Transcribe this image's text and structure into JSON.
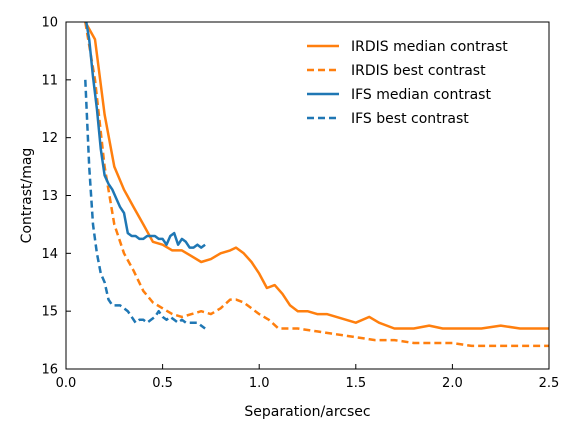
{
  "chart_data": {
    "type": "line",
    "xlabel": "Separation/arcsec",
    "ylabel": "Contrast/mag",
    "xlim": [
      0,
      2.5
    ],
    "ylim": [
      10,
      16
    ],
    "y_inverted": true,
    "x_ticks": [
      "0.0",
      "0.5",
      "1.0",
      "1.5",
      "2.0",
      "2.5"
    ],
    "y_ticks": [
      "10",
      "11",
      "12",
      "13",
      "14",
      "15",
      "16"
    ],
    "legend_position": "top-right",
    "grid": false,
    "series": [
      {
        "name": "IRDIS median contrast",
        "color": "#ff7f0e",
        "style": "solid",
        "x": [
          0.1,
          0.15,
          0.2,
          0.25,
          0.3,
          0.35,
          0.4,
          0.45,
          0.5,
          0.55,
          0.6,
          0.65,
          0.7,
          0.75,
          0.8,
          0.85,
          0.88,
          0.92,
          0.96,
          1.0,
          1.04,
          1.08,
          1.12,
          1.16,
          1.2,
          1.25,
          1.3,
          1.35,
          1.4,
          1.5,
          1.57,
          1.62,
          1.7,
          1.8,
          1.88,
          1.95,
          2.0,
          2.05,
          2.15,
          2.25,
          2.35,
          2.45,
          2.5
        ],
        "y": [
          10.0,
          10.3,
          11.6,
          12.5,
          12.9,
          13.2,
          13.5,
          13.8,
          13.85,
          13.95,
          13.95,
          14.05,
          14.15,
          14.1,
          14.0,
          13.95,
          13.9,
          14.0,
          14.15,
          14.35,
          14.6,
          14.55,
          14.7,
          14.9,
          15.0,
          15.0,
          15.05,
          15.05,
          15.1,
          15.2,
          15.1,
          15.2,
          15.3,
          15.3,
          15.25,
          15.3,
          15.3,
          15.3,
          15.3,
          15.25,
          15.3,
          15.3,
          15.3
        ]
      },
      {
        "name": "IRDIS best contrast",
        "color": "#ff7f0e",
        "style": "dashed",
        "x": [
          0.1,
          0.15,
          0.2,
          0.25,
          0.3,
          0.35,
          0.4,
          0.45,
          0.5,
          0.55,
          0.6,
          0.65,
          0.7,
          0.75,
          0.8,
          0.85,
          0.88,
          0.92,
          0.96,
          1.0,
          1.05,
          1.1,
          1.2,
          1.3,
          1.4,
          1.5,
          1.6,
          1.7,
          1.8,
          1.9,
          2.0,
          2.1,
          2.2,
          2.3,
          2.4,
          2.5
        ],
        "y": [
          10.0,
          11.0,
          12.5,
          13.5,
          14.0,
          14.3,
          14.65,
          14.85,
          14.95,
          15.05,
          15.1,
          15.05,
          15.0,
          15.05,
          14.95,
          14.8,
          14.8,
          14.85,
          14.95,
          15.05,
          15.15,
          15.3,
          15.3,
          15.35,
          15.4,
          15.45,
          15.5,
          15.5,
          15.55,
          15.55,
          15.55,
          15.6,
          15.6,
          15.6,
          15.6,
          15.6
        ]
      },
      {
        "name": "IFS median contrast",
        "color": "#1f77b4",
        "style": "solid",
        "x": [
          0.1,
          0.12,
          0.14,
          0.16,
          0.18,
          0.2,
          0.22,
          0.24,
          0.26,
          0.28,
          0.3,
          0.32,
          0.34,
          0.36,
          0.38,
          0.4,
          0.42,
          0.44,
          0.46,
          0.48,
          0.5,
          0.52,
          0.54,
          0.56,
          0.58,
          0.6,
          0.62,
          0.64,
          0.66,
          0.68,
          0.7,
          0.72
        ],
        "y": [
          9.9,
          10.3,
          10.95,
          11.5,
          12.2,
          12.65,
          12.8,
          12.9,
          13.05,
          13.2,
          13.3,
          13.65,
          13.7,
          13.7,
          13.75,
          13.75,
          13.7,
          13.7,
          13.7,
          13.75,
          13.75,
          13.85,
          13.7,
          13.65,
          13.85,
          13.75,
          13.8,
          13.9,
          13.9,
          13.85,
          13.9,
          13.85
        ]
      },
      {
        "name": "IFS best contrast",
        "color": "#1f77b4",
        "style": "dashed",
        "x": [
          0.1,
          0.12,
          0.14,
          0.16,
          0.18,
          0.2,
          0.22,
          0.24,
          0.26,
          0.28,
          0.3,
          0.32,
          0.34,
          0.36,
          0.38,
          0.4,
          0.42,
          0.44,
          0.46,
          0.48,
          0.5,
          0.52,
          0.54,
          0.56,
          0.58,
          0.6,
          0.62,
          0.64,
          0.66,
          0.68,
          0.7,
          0.72
        ],
        "y": [
          11.0,
          12.5,
          13.5,
          14.0,
          14.35,
          14.5,
          14.8,
          14.9,
          14.9,
          14.9,
          14.95,
          15.0,
          15.1,
          15.2,
          15.15,
          15.15,
          15.2,
          15.15,
          15.1,
          15.0,
          15.1,
          15.15,
          15.1,
          15.15,
          15.2,
          15.15,
          15.2,
          15.2,
          15.2,
          15.2,
          15.25,
          15.3
        ]
      }
    ]
  }
}
